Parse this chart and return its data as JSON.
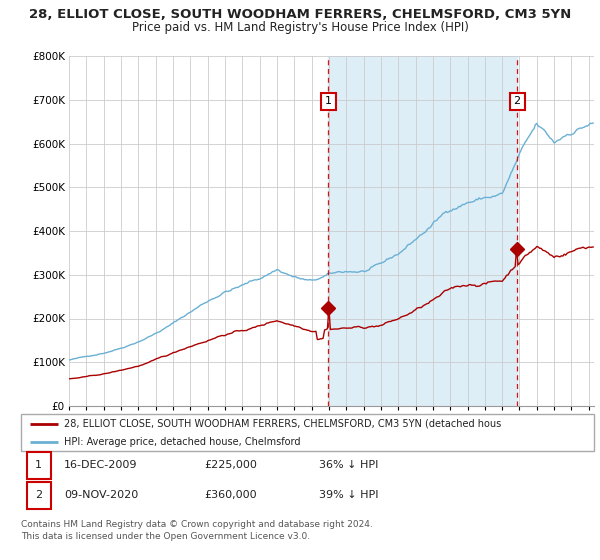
{
  "title1": "28, ELLIOT CLOSE, SOUTH WOODHAM FERRERS, CHELMSFORD, CM3 5YN",
  "title2": "Price paid vs. HM Land Registry's House Price Index (HPI)",
  "legend_line1": "28, ELLIOT CLOSE, SOUTH WOODHAM FERRERS, CHELMSFORD, CM3 5YN (detached hous",
  "legend_line2": "HPI: Average price, detached house, Chelmsford",
  "footnote1": "Contains HM Land Registry data © Crown copyright and database right 2024.",
  "footnote2": "This data is licensed under the Open Government Licence v3.0.",
  "table": [
    {
      "num": "1",
      "date": "16-DEC-2009",
      "price": "£225,000",
      "hpi": "36% ↓ HPI"
    },
    {
      "num": "2",
      "date": "09-NOV-2020",
      "price": "£360,000",
      "hpi": "39% ↓ HPI"
    }
  ],
  "marker1_x": 2009.96,
  "marker1_y": 225000,
  "marker2_x": 2020.86,
  "marker2_y": 360000,
  "vline1_x": 2009.96,
  "vline2_x": 2020.86,
  "ylim": [
    0,
    800000
  ],
  "xlim_start": 1995.0,
  "xlim_end": 2025.3,
  "hpi_color": "#6ab0d4",
  "price_color": "#aa0000",
  "vline_color": "#cc0000",
  "shade_color": "#deeef7",
  "bg_color": "#ffffff",
  "grid_color": "#cccccc"
}
